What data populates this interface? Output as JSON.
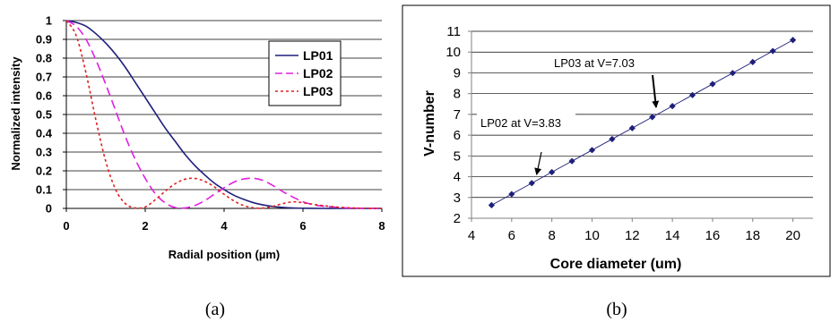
{
  "chart_data": [
    {
      "type": "line",
      "xlabel": "Radial position (µm)",
      "ylabel": "Normalized intensity",
      "xlim": [
        0,
        8
      ],
      "ylim": [
        0,
        1
      ],
      "x_ticks": [
        "0",
        "2",
        "4",
        "6",
        "8"
      ],
      "y_ticks": [
        "0",
        "0.1",
        "0.2",
        "0.3",
        "0.4",
        "0.5",
        "0.6",
        "0.7",
        "0.8",
        "0.9",
        "1"
      ],
      "grid": "horizontal",
      "legend": "top-right",
      "caption": "(a)",
      "series": [
        {
          "name": "LP01",
          "color": "#1F1F7A",
          "style": "solid",
          "x": [
            0,
            0.25,
            0.5,
            0.75,
            1,
            1.25,
            1.5,
            1.75,
            2,
            2.25,
            2.5,
            2.75,
            3,
            3.25,
            3.5,
            3.75,
            4,
            4.25,
            4.5,
            4.75,
            5,
            5.25,
            5.5,
            5.75,
            6,
            6.5,
            7,
            7.5,
            8
          ],
          "y": [
            1,
            0.99,
            0.97,
            0.93,
            0.88,
            0.82,
            0.75,
            0.67,
            0.59,
            0.51,
            0.43,
            0.36,
            0.29,
            0.23,
            0.18,
            0.135,
            0.1,
            0.07,
            0.048,
            0.03,
            0.018,
            0.01,
            0.005,
            0.002,
            0.001,
            0,
            0,
            0,
            0
          ]
        },
        {
          "name": "LP02",
          "color": "#E020E0",
          "style": "dashed",
          "x": [
            0,
            0.25,
            0.5,
            0.75,
            1,
            1.25,
            1.5,
            1.75,
            2,
            2.25,
            2.5,
            2.75,
            3,
            3.25,
            3.5,
            3.75,
            4,
            4.25,
            4.5,
            4.75,
            5,
            5.25,
            5.5,
            5.75,
            6,
            6.25,
            6.5,
            7,
            7.5,
            8
          ],
          "y": [
            1,
            0.97,
            0.9,
            0.79,
            0.66,
            0.52,
            0.38,
            0.26,
            0.16,
            0.08,
            0.03,
            0.005,
            0.002,
            0.015,
            0.04,
            0.075,
            0.11,
            0.14,
            0.157,
            0.16,
            0.148,
            0.12,
            0.088,
            0.06,
            0.035,
            0.02,
            0.012,
            0.004,
            0.001,
            0
          ]
        },
        {
          "name": "LP03",
          "color": "#E02020",
          "style": "dotted",
          "x": [
            0,
            0.25,
            0.5,
            0.75,
            1,
            1.25,
            1.5,
            1.75,
            2,
            2.25,
            2.5,
            2.75,
            3,
            3.25,
            3.5,
            3.75,
            4,
            4.25,
            4.5,
            4.75,
            5,
            5.25,
            5.5,
            5.75,
            6,
            6.5,
            7,
            7.5,
            8
          ],
          "y": [
            1,
            0.92,
            0.72,
            0.47,
            0.25,
            0.1,
            0.025,
            0.002,
            0.008,
            0.045,
            0.09,
            0.13,
            0.155,
            0.16,
            0.145,
            0.115,
            0.075,
            0.04,
            0.015,
            0.003,
            0.002,
            0.012,
            0.026,
            0.035,
            0.03,
            0.015,
            0.005,
            0.001,
            0
          ]
        }
      ]
    },
    {
      "type": "scatter",
      "xlabel": "Core diameter (um)",
      "ylabel": "V-number",
      "xlim": [
        4,
        21
      ],
      "ylim": [
        2,
        11
      ],
      "x_ticks": [
        "4",
        "6",
        "8",
        "10",
        "12",
        "14",
        "16",
        "18",
        "20"
      ],
      "y_ticks": [
        "2",
        "3",
        "4",
        "5",
        "6",
        "7",
        "8",
        "9",
        "10",
        "11"
      ],
      "grid": "horizontal",
      "caption": "(b)",
      "series": [
        {
          "color": "#1F1F7A",
          "x": [
            5,
            6,
            7,
            8,
            9,
            10,
            11,
            12,
            13,
            14,
            15,
            16,
            17,
            18,
            19,
            20
          ],
          "y": [
            2.63,
            3.16,
            3.69,
            4.22,
            4.75,
            5.28,
            5.81,
            6.34,
            6.87,
            7.4,
            7.93,
            8.46,
            8.99,
            9.52,
            10.05,
            10.58
          ]
        }
      ],
      "trendline": {
        "x": [
          5,
          20
        ],
        "y": [
          2.63,
          10.58
        ]
      },
      "annotations": [
        {
          "text": "LP02 at V=3.83",
          "x": 7.2,
          "y": 3.85
        },
        {
          "text": "LP03 at V=7.03",
          "x": 13.1,
          "y": 7.0
        }
      ]
    }
  ]
}
